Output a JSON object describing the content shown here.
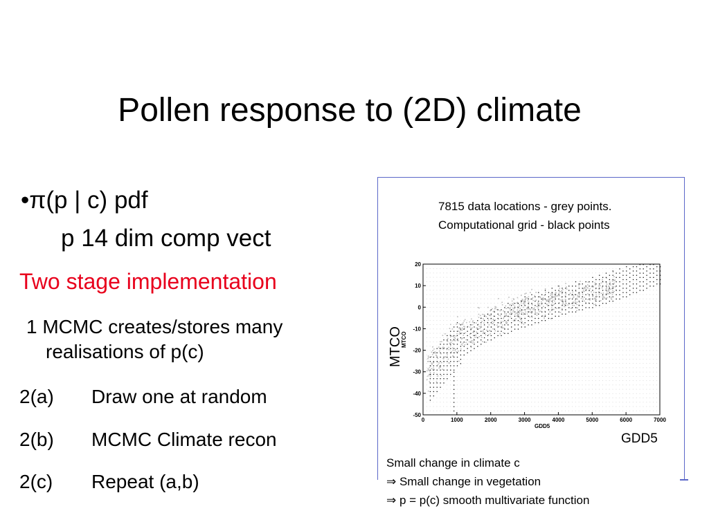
{
  "slide": {
    "title": "Pollen response to (2D) climate",
    "bullet1": "•π(p | c) pdf",
    "bullet1_sub": "p  14 dim comp vect",
    "red_heading": "Two stage implementation",
    "step1_line1": "1 MCMC creates/stores many",
    "step1_line2": "realisations of p(c)",
    "steps": [
      {
        "num": "2(a)",
        "text": "Draw one at random"
      },
      {
        "num": "2(b)",
        "text": "MCMC Climate recon"
      },
      {
        "num": "2(c)",
        "text": "Repeat (a,b)"
      }
    ]
  },
  "panel": {
    "note_line1": "7815 data locations - grey points.",
    "note_line2": "Computational grid  - black points",
    "ylabel_big": "MTCO",
    "xlabel_big": "GDD5",
    "caption_line1": "Small change in climate c",
    "caption_line2": "⇒ Small change in vegetation",
    "caption_line3": "⇒ p = p(c) smooth multivariate function",
    "colors": {
      "border": "#5a66c8",
      "grey_points": "#bdbdbd",
      "black_points": "#111111",
      "heading": "#e8001c"
    }
  },
  "chart_data": {
    "type": "scatter",
    "title": "",
    "xlabel": "GDD5",
    "ylabel": "MTCO",
    "xlim": [
      0,
      7000
    ],
    "ylim": [
      -50,
      20
    ],
    "xticks": [
      0,
      1000,
      2000,
      3000,
      4000,
      5000,
      6000,
      7000
    ],
    "yticks": [
      20,
      10,
      0,
      -10,
      -20,
      -30,
      -40,
      -50
    ],
    "grid": "dotted",
    "series": [
      {
        "name": "data locations",
        "color": "#bdbdbd",
        "band": [
          [
            0,
            -30
          ],
          [
            1000,
            -14
          ],
          [
            2000,
            -5
          ],
          [
            3000,
            0
          ],
          [
            4000,
            4
          ],
          [
            5000,
            7
          ],
          [
            6000,
            12
          ]
        ]
      },
      {
        "name": "computational grid",
        "color": "#111111",
        "band": [
          [
            200,
            -33
          ],
          [
            1000,
            -17
          ],
          [
            2000,
            -8
          ],
          [
            3000,
            -2
          ],
          [
            4000,
            3
          ],
          [
            5000,
            7
          ],
          [
            6000,
            12
          ],
          [
            7000,
            18
          ]
        ]
      }
    ]
  }
}
